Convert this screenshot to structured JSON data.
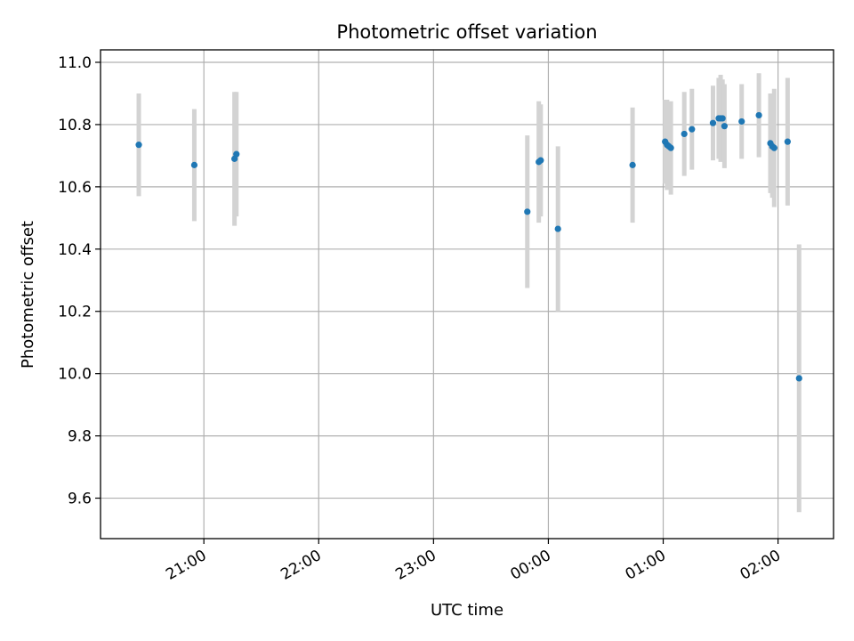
{
  "chart_data": {
    "type": "scatter",
    "title": "Photometric offset variation",
    "xlabel": "UTC time",
    "ylabel": "Photometric offset",
    "grid": true,
    "x_ticks": [
      "21:00",
      "22:00",
      "23:00",
      "00:00",
      "01:00",
      "02:00"
    ],
    "y_ticks": [
      "9.6",
      "9.8",
      "10.0",
      "10.2",
      "10.4",
      "10.6",
      "10.8",
      "11.0"
    ],
    "ylim": [
      9.47,
      11.04
    ],
    "xlim": [
      "20:06",
      "02:29"
    ],
    "colors": {
      "points": "#1f77b4",
      "errorbars": "#d3d3d3",
      "grid": "#b0b0b0"
    },
    "points": [
      {
        "x": "20:26",
        "y": 10.735,
        "err": 0.165
      },
      {
        "x": "20:55",
        "y": 10.67,
        "err": 0.18
      },
      {
        "x": "21:16",
        "y": 10.69,
        "err": 0.215
      },
      {
        "x": "21:17",
        "y": 10.705,
        "err": 0.2
      },
      {
        "x": "23:49",
        "y": 10.52,
        "err": 0.245
      },
      {
        "x": "23:55",
        "y": 10.68,
        "err": 0.195
      },
      {
        "x": "23:56",
        "y": 10.685,
        "err": 0.18
      },
      {
        "x": "00:05",
        "y": 10.465,
        "err": 0.265
      },
      {
        "x": "00:44",
        "y": 10.67,
        "err": 0.185
      },
      {
        "x": "01:01",
        "y": 10.745,
        "err": 0.135
      },
      {
        "x": "01:02",
        "y": 10.735,
        "err": 0.145
      },
      {
        "x": "01:03",
        "y": 10.73,
        "err": 0.125
      },
      {
        "x": "01:04",
        "y": 10.725,
        "err": 0.15
      },
      {
        "x": "01:11",
        "y": 10.77,
        "err": 0.135
      },
      {
        "x": "01:15",
        "y": 10.785,
        "err": 0.13
      },
      {
        "x": "01:26",
        "y": 10.805,
        "err": 0.12
      },
      {
        "x": "01:29",
        "y": 10.82,
        "err": 0.13
      },
      {
        "x": "01:30",
        "y": 10.82,
        "err": 0.14
      },
      {
        "x": "01:31",
        "y": 10.82,
        "err": 0.125
      },
      {
        "x": "01:32",
        "y": 10.795,
        "err": 0.135
      },
      {
        "x": "01:41",
        "y": 10.81,
        "err": 0.12
      },
      {
        "x": "01:50",
        "y": 10.83,
        "err": 0.135
      },
      {
        "x": "01:56",
        "y": 10.74,
        "err": 0.16
      },
      {
        "x": "01:57",
        "y": 10.73,
        "err": 0.165
      },
      {
        "x": "01:58",
        "y": 10.725,
        "err": 0.19
      },
      {
        "x": "02:05",
        "y": 10.745,
        "err": 0.205
      },
      {
        "x": "02:11",
        "y": 9.985,
        "err": 0.43
      }
    ]
  }
}
